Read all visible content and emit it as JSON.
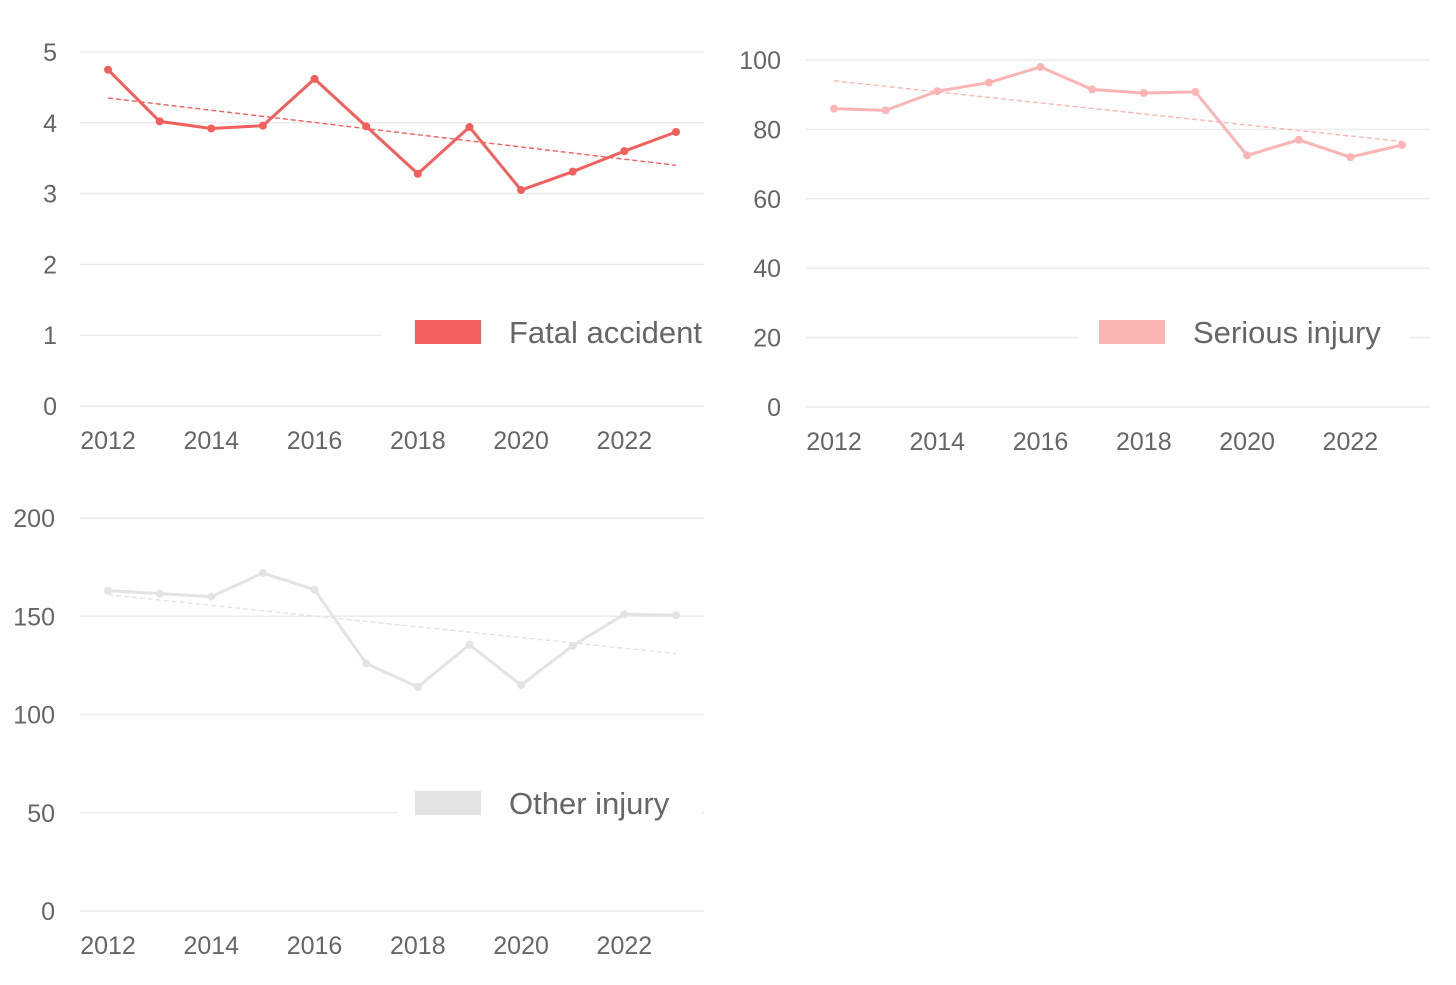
{
  "chart_data": [
    {
      "type": "line",
      "x": [
        2012,
        2013,
        2014,
        2015,
        2016,
        2017,
        2018,
        2019,
        2020,
        2021,
        2022,
        2023
      ],
      "xticks": [
        "2012",
        "2014",
        "2016",
        "2018",
        "2020",
        "2022"
      ],
      "xtick_values": [
        2012,
        2014,
        2016,
        2018,
        2020,
        2022
      ],
      "ylim": [
        0,
        5
      ],
      "yticks": [
        "0",
        "1",
        "2",
        "3",
        "4",
        "5"
      ],
      "ytick_values": [
        0,
        1,
        2,
        3,
        4,
        5
      ],
      "series": [
        {
          "name": "Fatal accident",
          "color": "#f25f5c",
          "values": [
            4.75,
            4.02,
            3.92,
            3.96,
            4.62,
            3.95,
            3.28,
            3.94,
            3.05,
            3.31,
            3.6,
            3.87
          ],
          "trend": [
            4.35,
            3.4
          ]
        }
      ],
      "legend": "bottom-right",
      "grid": true
    },
    {
      "type": "line",
      "x": [
        2012,
        2013,
        2014,
        2015,
        2016,
        2017,
        2018,
        2019,
        2020,
        2021,
        2022,
        2023
      ],
      "xticks": [
        "2012",
        "2014",
        "2016",
        "2018",
        "2020",
        "2022"
      ],
      "xtick_values": [
        2012,
        2014,
        2016,
        2018,
        2020,
        2022
      ],
      "ylim": [
        0,
        100
      ],
      "yticks": [
        "0",
        "20",
        "40",
        "60",
        "80",
        "100"
      ],
      "ytick_values": [
        0,
        20,
        40,
        60,
        80,
        100
      ],
      "series": [
        {
          "name": "Serious injury",
          "color": "#fbb5b5",
          "values": [
            86,
            85.5,
            91,
            93.5,
            98,
            91.5,
            90.5,
            90.8,
            72.5,
            77,
            72,
            75.5
          ],
          "trend": [
            94,
            76.5
          ]
        }
      ],
      "legend": "bottom-right",
      "grid": true
    },
    {
      "type": "line",
      "x": [
        2012,
        2013,
        2014,
        2015,
        2016,
        2017,
        2018,
        2019,
        2020,
        2021,
        2022,
        2023
      ],
      "xticks": [
        "2012",
        "2014",
        "2016",
        "2018",
        "2020",
        "2022"
      ],
      "xtick_values": [
        2012,
        2014,
        2016,
        2018,
        2020,
        2022
      ],
      "ylim": [
        0,
        200
      ],
      "yticks": [
        "0",
        "50",
        "100",
        "150",
        "200"
      ],
      "ytick_values": [
        0,
        50,
        100,
        150,
        200
      ],
      "series": [
        {
          "name": "Other injury",
          "color": "#e3e3e3",
          "values": [
            163,
            161.5,
            160,
            172,
            163.5,
            126,
            114,
            135.5,
            115,
            135,
            151,
            150.5
          ],
          "trend": [
            161,
            131
          ]
        }
      ],
      "legend": "bottom-right",
      "grid": true
    }
  ],
  "style": {
    "grid_color": "#ececec",
    "tick_label_color": "#666666",
    "legend_text_color": "#666666"
  }
}
